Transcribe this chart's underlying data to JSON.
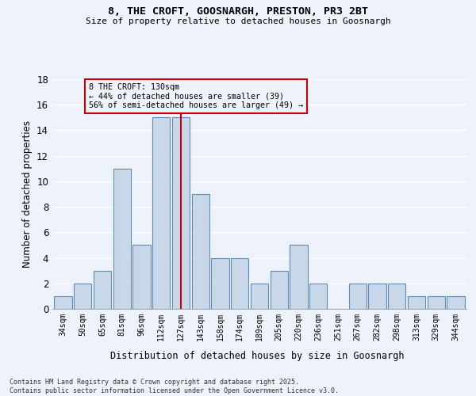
{
  "title1": "8, THE CROFT, GOOSNARGH, PRESTON, PR3 2BT",
  "title2": "Size of property relative to detached houses in Goosnargh",
  "xlabel": "Distribution of detached houses by size in Goosnargh",
  "ylabel": "Number of detached properties",
  "categories": [
    "34sqm",
    "50sqm",
    "65sqm",
    "81sqm",
    "96sqm",
    "112sqm",
    "127sqm",
    "143sqm",
    "158sqm",
    "174sqm",
    "189sqm",
    "205sqm",
    "220sqm",
    "236sqm",
    "251sqm",
    "267sqm",
    "282sqm",
    "298sqm",
    "313sqm",
    "329sqm",
    "344sqm"
  ],
  "values": [
    1,
    2,
    3,
    11,
    5,
    15,
    15,
    9,
    4,
    4,
    2,
    3,
    5,
    2,
    0,
    2,
    2,
    2,
    1,
    1,
    1
  ],
  "bar_color": "#c8d8e8",
  "bar_edge_color": "#5b8db8",
  "ylim": [
    0,
    18
  ],
  "yticks": [
    0,
    2,
    4,
    6,
    8,
    10,
    12,
    14,
    16,
    18
  ],
  "vline_x_index": 6,
  "vline_color": "#cc0000",
  "annotation_title": "8 THE CROFT: 130sqm",
  "annotation_line1": "← 44% of detached houses are smaller (39)",
  "annotation_line2": "56% of semi-detached houses are larger (49) →",
  "annotation_box_color": "#cc0000",
  "bg_color": "#eef2fa",
  "grid_color": "#ffffff",
  "footer1": "Contains HM Land Registry data © Crown copyright and database right 2025.",
  "footer2": "Contains public sector information licensed under the Open Government Licence v3.0."
}
